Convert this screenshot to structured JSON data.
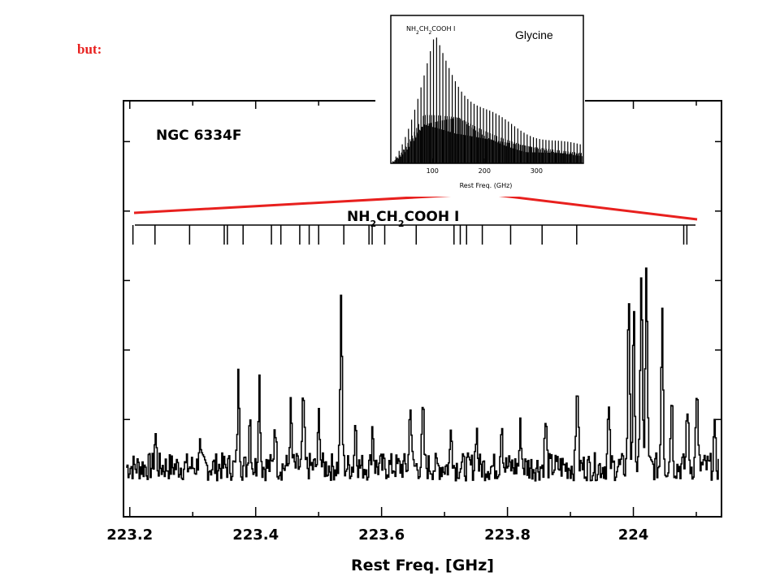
{
  "slide": {
    "caption": "but:",
    "caption_color": "#e8201e",
    "connector_color": "#e8201e"
  },
  "chart_data": [
    {
      "id": "main-spectrum",
      "type": "line",
      "title": "NGC 6334F",
      "species_label": "NH2CH2COOH I",
      "xlabel": "Rest Freq. [GHz]",
      "ylabel": "",
      "x_ticks": [
        "223.2",
        "223.4",
        "223.6",
        "223.8",
        "224"
      ],
      "xlim": [
        223.19,
        224.14
      ],
      "ylim": [
        0,
        1
      ],
      "grid": false,
      "line_marker_freqs": [
        223.205,
        223.24,
        223.295,
        223.35,
        223.355,
        223.38,
        223.425,
        223.44,
        223.47,
        223.485,
        223.5,
        223.54,
        223.58,
        223.585,
        223.605,
        223.655,
        223.715,
        223.725,
        223.735,
        223.76,
        223.805,
        223.855,
        223.91,
        224.08,
        224.085
      ],
      "spectrum": {
        "baseline": 0.13,
        "noise": 0.06,
        "peaks": [
          {
            "x": 223.24,
            "y": 0.27
          },
          {
            "x": 223.31,
            "y": 0.23
          },
          {
            "x": 223.372,
            "y": 0.52
          },
          {
            "x": 223.39,
            "y": 0.36
          },
          {
            "x": 223.405,
            "y": 0.51
          },
          {
            "x": 223.43,
            "y": 0.33
          },
          {
            "x": 223.455,
            "y": 0.38
          },
          {
            "x": 223.475,
            "y": 0.43
          },
          {
            "x": 223.5,
            "y": 0.36
          },
          {
            "x": 223.535,
            "y": 0.82
          },
          {
            "x": 223.558,
            "y": 0.33
          },
          {
            "x": 223.585,
            "y": 0.31
          },
          {
            "x": 223.645,
            "y": 0.42
          },
          {
            "x": 223.665,
            "y": 0.37
          },
          {
            "x": 223.71,
            "y": 0.31
          },
          {
            "x": 223.75,
            "y": 0.3
          },
          {
            "x": 223.79,
            "y": 0.34
          },
          {
            "x": 223.82,
            "y": 0.3
          },
          {
            "x": 223.86,
            "y": 0.33
          },
          {
            "x": 223.91,
            "y": 0.51
          },
          {
            "x": 223.96,
            "y": 0.37
          },
          {
            "x": 223.992,
            "y": 0.87
          },
          {
            "x": 224.0,
            "y": 0.76
          },
          {
            "x": 224.012,
            "y": 1.0
          },
          {
            "x": 224.02,
            "y": 1.0
          },
          {
            "x": 224.045,
            "y": 0.83
          },
          {
            "x": 224.06,
            "y": 0.45
          },
          {
            "x": 224.085,
            "y": 0.4
          },
          {
            "x": 224.1,
            "y": 0.47
          },
          {
            "x": 224.128,
            "y": 0.28
          }
        ]
      }
    },
    {
      "id": "inset-glycine",
      "type": "bar",
      "title": "Glycine",
      "species_label": "NH2CH2COOH I",
      "xlabel": "Rest Freq. (GHz)",
      "ylabel": "",
      "x_ticks": [
        "100",
        "200",
        "300"
      ],
      "xlim": [
        20,
        390
      ],
      "ylim": [
        0,
        1
      ],
      "grid": false,
      "envelope": {
        "peak_freq": 105,
        "peak_value": 0.94,
        "tail_value_at_380": 0.08,
        "line_spacing_ghz": 6
      }
    }
  ]
}
